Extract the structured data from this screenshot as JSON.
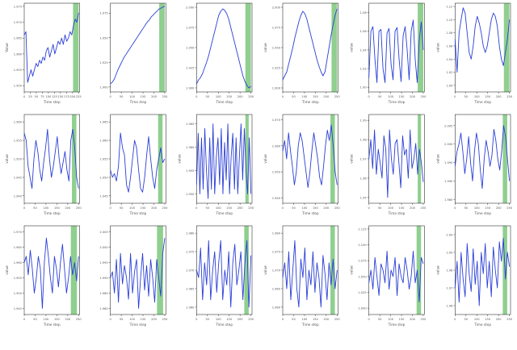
{
  "caption_fragment": "",
  "colors": {
    "line": "#2a3fd6",
    "forecast_band": "#8fcf8f",
    "axis": "#333333",
    "tick_text": "#555555"
  },
  "chart_data": [
    {
      "type": "line",
      "xlabel": "Time step",
      "ylabel": "Value",
      "yticks": [
        "1.950",
        "1.955",
        "1.960",
        "1.965",
        "1.970",
        "1.975"
      ],
      "xticks": [
        "0",
        "25",
        "50",
        "75",
        "100",
        "125",
        "150",
        "175",
        "200",
        "225"
      ],
      "ylim": [
        1.948,
        1.976
      ],
      "band": [
        0.88,
        0.98
      ],
      "values": [
        1.966,
        1.967,
        1.951,
        1.953,
        1.955,
        1.953,
        1.955,
        1.957,
        1.956,
        1.958,
        1.957,
        1.959,
        1.958,
        1.961,
        1.962,
        1.959,
        1.961,
        1.963,
        1.96,
        1.962,
        1.964,
        1.963,
        1.965,
        1.963,
        1.966,
        1.964,
        1.965,
        1.967,
        1.966,
        1.969,
        1.971,
        1.97,
        1.973
      ]
    },
    {
      "type": "line",
      "xlabel": "Time step",
      "ylabel": "",
      "yticks": [
        "1.900",
        "1.925",
        "1.950",
        "1.975"
      ],
      "xticks": [
        "0",
        "50",
        "100",
        "150",
        "200",
        "250"
      ],
      "ylim": [
        1.895,
        1.985
      ],
      "band": [
        0.88,
        0.98
      ],
      "values": [
        1.903,
        1.905,
        1.908,
        1.913,
        1.918,
        1.922,
        1.926,
        1.93,
        1.933,
        1.936,
        1.939,
        1.942,
        1.945,
        1.948,
        1.951,
        1.954,
        1.957,
        1.96,
        1.963,
        1.966,
        1.968,
        1.971,
        1.973,
        1.975,
        1.977,
        1.979,
        1.98,
        1.981,
        1.982
      ]
    },
    {
      "type": "line",
      "xlabel": "Time step",
      "ylabel": "",
      "yticks": [
        "1.900",
        "1.925",
        "1.950",
        "1.975",
        "2.000"
      ],
      "xticks": [
        "0",
        "50",
        "100",
        "150",
        "200",
        "250"
      ],
      "ylim": [
        1.895,
        2.005
      ],
      "band": [
        0.88,
        0.98
      ],
      "values": [
        1.905,
        1.91,
        1.913,
        1.918,
        1.925,
        1.932,
        1.94,
        1.95,
        1.96,
        1.97,
        1.98,
        1.99,
        1.995,
        1.998,
        1.996,
        1.992,
        1.985,
        1.975,
        1.965,
        1.955,
        1.945,
        1.935,
        1.925,
        1.915,
        1.908,
        1.903,
        1.9,
        1.902
      ]
    },
    {
      "type": "line",
      "xlabel": "Time step",
      "ylabel": "value",
      "yticks": [
        "1.900",
        "1.925",
        "1.950",
        "1.975",
        "2.000"
      ],
      "xticks": [
        "0",
        "50",
        "100",
        "150",
        "200",
        "250"
      ],
      "ylim": [
        1.895,
        2.005
      ],
      "band": [
        0.88,
        0.98
      ],
      "values": [
        1.91,
        1.915,
        1.92,
        1.93,
        1.94,
        1.95,
        1.962,
        1.972,
        1.982,
        1.99,
        1.995,
        1.992,
        1.985,
        1.975,
        1.965,
        1.955,
        1.945,
        1.935,
        1.927,
        1.92,
        1.915,
        1.92,
        1.935,
        1.95,
        1.965,
        1.978,
        1.99,
        1.998
      ]
    },
    {
      "type": "line",
      "xlabel": "Time step",
      "ylabel": "value",
      "yticks": [
        "1.00",
        "1.02",
        "1.04",
        "1.06",
        "1.08"
      ],
      "xticks": [
        "0",
        "50",
        "100",
        "150",
        "200",
        "250"
      ],
      "ylim": [
        0.995,
        1.09
      ],
      "band": [
        0.88,
        0.98
      ],
      "values": [
        1.01,
        1.06,
        1.065,
        1.03,
        1.005,
        1.06,
        1.062,
        1.02,
        1.005,
        1.058,
        1.063,
        1.025,
        1.008,
        1.06,
        1.064,
        1.03,
        1.006,
        1.055,
        1.065,
        1.04,
        1.008,
        1.06,
        1.072,
        1.03,
        1.005,
        1.05,
        1.07,
        1.04
      ]
    },
    {
      "type": "line",
      "xlabel": "Time step",
      "ylabel": "value",
      "yticks": [
        "1.00",
        "1.02",
        "1.04",
        "1.06",
        "1.08",
        "1.10",
        "1.12"
      ],
      "xticks": [
        "0",
        "50",
        "100",
        "150",
        "200",
        "250"
      ],
      "ylim": [
        0.99,
        1.125
      ],
      "band": [
        0.88,
        0.98
      ],
      "values": [
        1.07,
        1.02,
        1.08,
        1.1,
        1.118,
        1.11,
        1.08,
        1.05,
        1.04,
        1.06,
        1.09,
        1.105,
        1.095,
        1.08,
        1.06,
        1.05,
        1.06,
        1.08,
        1.1,
        1.11,
        1.105,
        1.09,
        1.06,
        1.04,
        1.03,
        1.05,
        1.07,
        1.1
      ]
    },
    {
      "type": "line",
      "xlabel": "Time step",
      "ylabel": "value",
      "yticks": [
        "1.940",
        "1.945",
        "1.950",
        "1.955",
        "1.960"
      ],
      "xticks": [
        "0",
        "50",
        "100",
        "150",
        "200",
        "250"
      ],
      "ylim": [
        1.938,
        1.962
      ],
      "band": [
        0.86,
        0.94
      ],
      "values": [
        1.957,
        1.955,
        1.948,
        1.945,
        1.942,
        1.95,
        1.955,
        1.952,
        1.947,
        1.944,
        1.949,
        1.953,
        1.958,
        1.95,
        1.945,
        1.948,
        1.952,
        1.956,
        1.95,
        1.946,
        1.949,
        1.952,
        1.947,
        1.944,
        1.955,
        1.958,
        1.953,
        1.945,
        1.942
      ]
    },
    {
      "type": "line",
      "xlabel": "Time step",
      "ylabel": "",
      "yticks": [
        "1.945",
        "1.950",
        "1.955",
        "1.960",
        "1.965"
      ],
      "xticks": [
        "0",
        "50",
        "100",
        "150",
        "200",
        "250"
      ],
      "ylim": [
        1.943,
        1.967
      ],
      "band": [
        0.86,
        0.94
      ],
      "values": [
        1.952,
        1.95,
        1.951,
        1.949,
        1.953,
        1.962,
        1.958,
        1.956,
        1.948,
        1.946,
        1.95,
        1.955,
        1.96,
        1.958,
        1.952,
        1.947,
        1.946,
        1.95,
        1.956,
        1.961,
        1.955,
        1.95,
        1.947,
        1.952,
        1.955,
        1.958,
        1.954,
        1.955
      ]
    },
    {
      "type": "line",
      "xlabel": "Time step",
      "ylabel": "value",
      "yticks": [
        "1.950",
        "1.955",
        "1.960",
        "1.965"
      ],
      "xticks": [
        "0",
        "50",
        "100",
        "150",
        "200",
        "250"
      ],
      "ylim": [
        1.948,
        1.967
      ],
      "band": [
        0.88,
        0.94
      ],
      "values": [
        1.952,
        1.963,
        1.95,
        1.962,
        1.951,
        1.964,
        1.955,
        1.949,
        1.962,
        1.951,
        1.965,
        1.95,
        1.958,
        1.962,
        1.952,
        1.964,
        1.95,
        1.961,
        1.953,
        1.965,
        1.95,
        1.958,
        1.963,
        1.951,
        1.962,
        1.95,
        1.958,
        1.965,
        1.953,
        1.964,
        1.955,
        1.95,
        1.962,
        1.95
      ]
    },
    {
      "type": "line",
      "xlabel": "Time step",
      "ylabel": "value",
      "yticks": [
        "1.940",
        "1.950",
        "1.960",
        "1.970"
      ],
      "xticks": [
        "0",
        "50",
        "100",
        "150",
        "200",
        "250"
      ],
      "ylim": [
        1.938,
        1.972
      ],
      "band": [
        0.86,
        0.94
      ],
      "values": [
        1.958,
        1.962,
        1.955,
        1.965,
        1.958,
        1.952,
        1.945,
        1.95,
        1.96,
        1.965,
        1.962,
        1.956,
        1.95,
        1.944,
        1.95,
        1.958,
        1.965,
        1.96,
        1.955,
        1.948,
        1.945,
        1.952,
        1.96,
        1.966,
        1.962,
        1.968,
        1.96,
        1.95,
        1.945
      ]
    },
    {
      "type": "line",
      "xlabel": "Time step",
      "ylabel": "value",
      "yticks": [
        "1.95",
        "1.96",
        "1.97",
        "1.98",
        "1.99"
      ],
      "xticks": [
        "0",
        "50",
        "100",
        "150",
        "200",
        "250"
      ],
      "ylim": [
        1.947,
        1.993
      ],
      "band": [
        0.88,
        0.94
      ],
      "values": [
        1.97,
        1.98,
        1.965,
        1.985,
        1.962,
        1.975,
        1.968,
        1.96,
        1.982,
        1.975,
        1.95,
        1.985,
        1.97,
        1.962,
        1.978,
        1.98,
        1.968,
        1.955,
        1.982,
        1.972,
        1.975,
        1.96,
        1.985,
        1.965,
        1.97,
        1.978,
        1.962,
        1.975,
        1.968,
        1.958
      ]
    },
    {
      "type": "line",
      "xlabel": "Time step",
      "ylabel": "value",
      "yticks": [
        "1.985",
        "1.990",
        "1.995",
        "2.000",
        "2.005"
      ],
      "xticks": [
        "0",
        "50",
        "100",
        "150",
        "200",
        "250"
      ],
      "ylim": [
        1.984,
        2.008
      ],
      "band": [
        0.86,
        0.94
      ],
      "values": [
        1.994,
        1.998,
        2.0,
        2.003,
        1.998,
        1.992,
        1.996,
        2.002,
        1.995,
        1.99,
        1.998,
        2.003,
        2.0,
        1.993,
        1.988,
        1.996,
        2.001,
        1.998,
        1.994,
        1.997,
        2.004,
        2.001,
        1.996,
        1.993,
        1.998,
        2.005,
        2.002,
        1.996,
        1.99
      ]
    },
    {
      "type": "line",
      "xlabel": "Time step",
      "ylabel": "value",
      "yticks": [
        "1.945",
        "1.950",
        "1.955",
        "1.960",
        "1.965",
        "1.970"
      ],
      "xticks": [
        "0",
        "50",
        "100",
        "150",
        "200",
        "250"
      ],
      "ylim": [
        1.943,
        1.972
      ],
      "band": [
        0.84,
        0.95
      ],
      "values": [
        1.96,
        1.962,
        1.956,
        1.964,
        1.958,
        1.95,
        1.955,
        1.962,
        1.958,
        1.945,
        1.96,
        1.968,
        1.962,
        1.955,
        1.95,
        1.962,
        1.958,
        1.952,
        1.96,
        1.966,
        1.958,
        1.95,
        1.955,
        1.962,
        1.956,
        1.96,
        1.954,
        1.962
      ]
    },
    {
      "type": "line",
      "xlabel": "Time step",
      "ylabel": "",
      "yticks": [
        "1.980",
        "1.985",
        "1.990",
        "1.995",
        "2.000",
        "2.005"
      ],
      "xticks": [
        "0",
        "50",
        "100",
        "150",
        "200",
        "250"
      ],
      "ylim": [
        1.978,
        2.007
      ],
      "band": [
        0.84,
        0.95
      ],
      "values": [
        1.99,
        1.992,
        1.985,
        1.996,
        1.982,
        1.998,
        1.988,
        1.994,
        1.99,
        1.983,
        1.998,
        1.985,
        1.992,
        1.996,
        1.98,
        1.99,
        1.998,
        1.986,
        1.994,
        1.984,
        1.996,
        1.99,
        1.982,
        1.996,
        1.99,
        1.984,
        1.998,
        2.003
      ]
    },
    {
      "type": "line",
      "xlabel": "Time step",
      "ylabel": "",
      "yticks": [
        "1.960",
        "1.965",
        "1.970",
        "1.975",
        "1.980"
      ],
      "xticks": [
        "0",
        "50",
        "100",
        "150",
        "200",
        "250"
      ],
      "ylim": [
        1.958,
        1.982
      ],
      "band": [
        0.86,
        0.94
      ],
      "values": [
        1.97,
        1.968,
        1.976,
        1.962,
        1.972,
        1.966,
        1.978,
        1.962,
        1.97,
        1.975,
        1.964,
        1.972,
        1.978,
        1.962,
        1.97,
        1.966,
        1.975,
        1.96,
        1.972,
        1.977,
        1.966,
        1.97,
        1.975,
        1.962,
        1.972,
        1.978,
        1.96,
        1.974
      ]
    },
    {
      "type": "line",
      "xlabel": "Time step",
      "ylabel": "value",
      "yticks": [
        "1.960",
        "1.965",
        "1.970",
        "1.975",
        "1.980"
      ],
      "xticks": [
        "0",
        "50",
        "100",
        "150",
        "200",
        "250"
      ],
      "ylim": [
        1.958,
        1.982
      ],
      "band": [
        0.86,
        0.94
      ],
      "values": [
        1.968,
        1.972,
        1.965,
        1.975,
        1.962,
        1.97,
        1.978,
        1.965,
        1.96,
        1.973,
        1.968,
        1.976,
        1.962,
        1.97,
        1.966,
        1.975,
        1.964,
        1.972,
        1.968,
        1.96,
        1.974,
        1.969,
        1.962,
        1.972,
        1.966,
        1.973,
        1.965,
        1.97
      ]
    },
    {
      "type": "line",
      "xlabel": "Time step",
      "ylabel": "value",
      "yticks": [
        "1.000",
        "1.025",
        "1.050",
        "1.075",
        "1.100",
        "1.125"
      ],
      "xticks": [
        "0",
        "50",
        "100",
        "150",
        "200",
        "250"
      ],
      "ylim": [
        0.99,
        1.13
      ],
      "band": [
        0.86,
        0.94
      ],
      "values": [
        1.04,
        1.06,
        1.03,
        1.08,
        1.05,
        1.02,
        1.07,
        1.06,
        1.04,
        1.09,
        1.03,
        1.06,
        1.05,
        1.08,
        1.02,
        1.07,
        1.05,
        1.04,
        1.08,
        1.06,
        1.03,
        1.05,
        1.09,
        1.04,
        1.06,
        1.01,
        1.08,
        1.07
      ]
    },
    {
      "type": "line",
      "xlabel": "Time step",
      "ylabel": "value",
      "yticks": [
        "1.96",
        "1.97",
        "1.98",
        "1.99",
        "2.00"
      ],
      "xticks": [
        "0",
        "50",
        "100",
        "150",
        "200",
        "250"
      ],
      "ylim": [
        1.955,
        2.005
      ],
      "band": [
        0.86,
        0.94
      ],
      "values": [
        1.97,
        1.985,
        1.962,
        1.99,
        1.975,
        1.965,
        1.995,
        1.978,
        1.968,
        1.992,
        1.972,
        1.985,
        1.96,
        1.99,
        1.978,
        1.995,
        1.97,
        1.985,
        1.965,
        1.993,
        1.98,
        1.97,
        1.996,
        1.985,
        1.998,
        1.975,
        1.99,
        1.982
      ]
    }
  ]
}
